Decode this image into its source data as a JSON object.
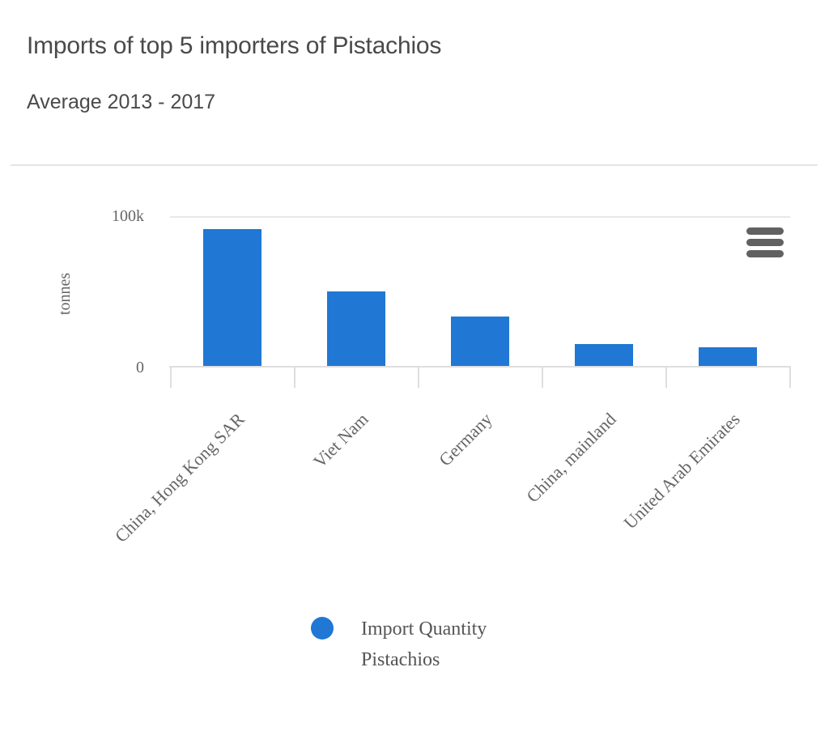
{
  "header": {
    "title": "Imports of top 5 importers of Pistachios",
    "subtitle": "Average 2013 - 2017"
  },
  "chart_data": {
    "type": "bar",
    "title": "Imports of top 5 importers of Pistachios",
    "subtitle": "Average 2013 - 2017",
    "categories": [
      "China, Hong Kong SAR",
      "Viet Nam",
      "Germany",
      "China, mainland",
      "United Arab Emirates"
    ],
    "series": [
      {
        "name": "Import Quantity Pistachios",
        "values": [
          92000,
          50000,
          33000,
          14600,
          12400
        ]
      }
    ],
    "ylabel": "tonnes",
    "ylim": [
      0,
      100000
    ],
    "ytick_labels": [
      "0",
      "100k"
    ],
    "grid": "top gridline at y-max only",
    "legend_position": "bottom-center",
    "colors": {
      "bar": "#2077d4",
      "axis_text": "#666666",
      "title_text": "#4a4a4a",
      "grid_line": "#e8e8e8",
      "axis_line": "#dedede",
      "export_icon": "#616161"
    }
  },
  "legend": {
    "label": "Import Quantity Pistachios"
  }
}
